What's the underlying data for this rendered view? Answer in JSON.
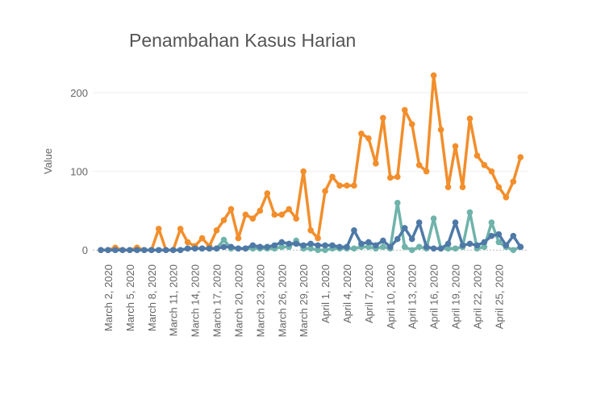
{
  "chart_data": {
    "type": "line",
    "title": "Penambahan Kasus Harian",
    "y_label": "Value",
    "categories": [
      null,
      "March 2, 2020",
      null,
      null,
      "March 5, 2020",
      null,
      null,
      "March 8, 2020",
      null,
      null,
      "March 11, 2020",
      null,
      null,
      "March 14, 2020",
      null,
      null,
      "March 17, 2020",
      null,
      null,
      "March 20, 2020",
      null,
      null,
      "March 23, 2020",
      null,
      null,
      "March 26, 2020",
      null,
      null,
      "March 29, 2020",
      null,
      null,
      "April 1, 2020",
      null,
      null,
      "April 4, 2020",
      null,
      null,
      "April 7, 2020",
      null,
      null,
      "April 10, 2020",
      null,
      null,
      "April 13, 2020",
      null,
      null,
      "April 16, 2020",
      null,
      null,
      "April 19, 2020",
      null,
      null,
      "April 22, 2020",
      null,
      null,
      "April 25, 2020",
      null,
      null,
      null
    ],
    "series": [
      {
        "color": "#6fb3aa",
        "values": [
          0,
          0,
          0,
          0,
          0,
          0,
          0,
          0,
          0,
          0,
          0,
          0,
          2,
          2,
          2,
          2,
          2,
          13,
          2,
          2,
          2,
          2,
          2,
          2,
          2,
          4,
          4,
          12,
          2,
          2,
          0,
          0,
          2,
          2,
          2,
          2,
          4,
          4,
          2,
          4,
          2,
          60,
          4,
          0,
          4,
          2,
          40,
          2,
          2,
          2,
          4,
          48,
          2,
          4,
          35,
          10,
          4,
          0,
          4
        ]
      },
      {
        "color": "#f28e2b",
        "values": [
          0,
          0,
          3,
          0,
          0,
          3,
          0,
          0,
          27,
          0,
          0,
          27,
          10,
          5,
          15,
          5,
          25,
          38,
          52,
          15,
          45,
          40,
          50,
          72,
          45,
          45,
          52,
          40,
          100,
          25,
          15,
          75,
          93,
          82,
          82,
          82,
          148,
          142,
          110,
          168,
          92,
          93,
          178,
          160,
          108,
          100,
          222,
          153,
          80,
          132,
          80,
          167,
          120,
          108,
          100,
          80,
          67,
          87,
          118
        ]
      },
      {
        "color": "#4e79a7",
        "values": [
          0,
          0,
          0,
          0,
          0,
          0,
          0,
          0,
          0,
          0,
          0,
          0,
          2,
          2,
          2,
          2,
          2,
          4,
          4,
          2,
          2,
          6,
          4,
          4,
          6,
          10,
          8,
          8,
          6,
          8,
          6,
          6,
          6,
          4,
          4,
          25,
          8,
          10,
          6,
          12,
          4,
          14,
          28,
          14,
          35,
          4,
          2,
          2,
          8,
          35,
          6,
          8,
          6,
          10,
          18,
          20,
          6,
          18,
          4
        ]
      }
    ],
    "ylim": [
      -10,
      241
    ],
    "yticks": [
      0,
      100,
      200
    ],
    "grid": true
  }
}
